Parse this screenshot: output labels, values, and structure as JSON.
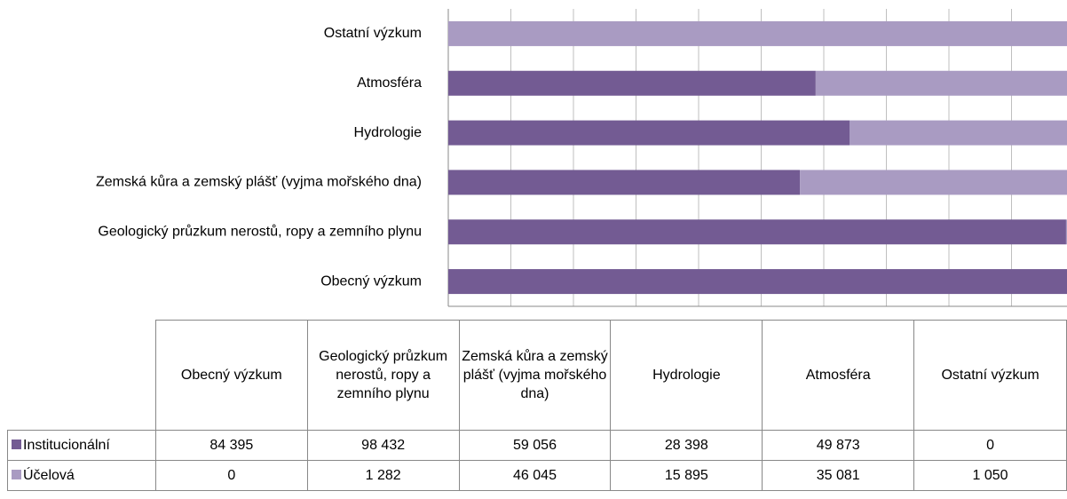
{
  "chart_data": {
    "type": "stacked_bar_100",
    "categories": [
      "Obecný výzkum",
      "Geologický průzkum nerostů, ropy a zemního plynu",
      "Zemská kůra a zemský plášť (vyjma mořského dna)",
      "Hydrologie",
      "Atmosféra",
      "Ostatní výzkum"
    ],
    "series": [
      {
        "name": "Institucionální",
        "color": "#735b93",
        "values": [
          84395,
          98432,
          59056,
          28398,
          49873,
          0
        ],
        "value_labels": [
          "84 395",
          "98 432",
          "59 056",
          "28 398",
          "49 873",
          "0"
        ]
      },
      {
        "name": "Účelová",
        "color": "#a99bc2",
        "values": [
          0,
          1282,
          46045,
          15895,
          35081,
          1050
        ],
        "value_labels": [
          "0",
          "1 282",
          "46 045",
          "15 895",
          "35 081",
          "1 050"
        ]
      }
    ],
    "xlim": [
      0,
      100
    ],
    "xticks": [
      0,
      10,
      20,
      30,
      40,
      50,
      60,
      70,
      80,
      90,
      100
    ],
    "grid": true
  }
}
